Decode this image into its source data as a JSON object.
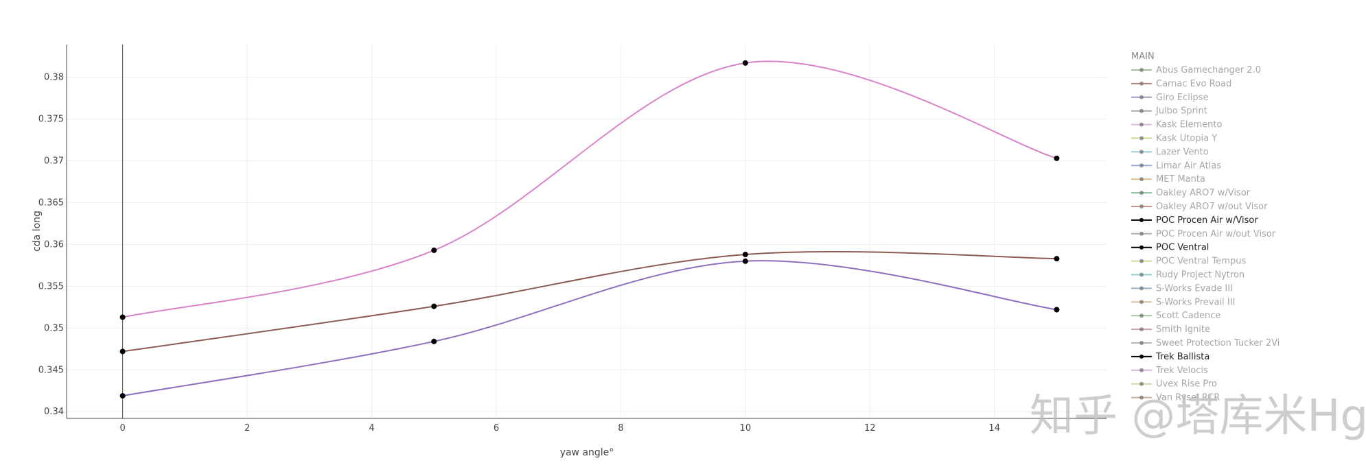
{
  "chart_data": {
    "type": "line",
    "xlabel": "yaw angle°",
    "ylabel": "cda long",
    "xlim": [
      -0.9,
      15.8
    ],
    "ylim": [
      0.3392,
      0.3839
    ],
    "x_ticks": [
      0,
      2,
      4,
      6,
      8,
      10,
      12,
      14
    ],
    "y_ticks": [
      0.34,
      0.345,
      0.35,
      0.355,
      0.36,
      0.365,
      0.37,
      0.375,
      0.38
    ],
    "grid": true,
    "smoothing": "spline",
    "legend": {
      "title": "MAIN",
      "placement": "right",
      "items": [
        {
          "label": "Abus Gamechanger 2.0",
          "color": "#8fbf8f",
          "active": false
        },
        {
          "label": "Carnac Evo Road",
          "color": "#a8786b",
          "active": false
        },
        {
          "label": "Giro Eclipse",
          "color": "#9c8fc0",
          "active": false
        },
        {
          "label": "Julbo Sprint",
          "color": "#a0a0a0",
          "active": false
        },
        {
          "label": "Kask Elemento",
          "color": "#e0b0d4",
          "active": false
        },
        {
          "label": "Kask Utopia Y",
          "color": "#cfd08a",
          "active": false
        },
        {
          "label": "Lazer Vento",
          "color": "#8cc8d8",
          "active": false
        },
        {
          "label": "Limar Air Atlas",
          "color": "#8aa6cc",
          "active": false
        },
        {
          "label": "MET Manta",
          "color": "#d4b878",
          "active": false
        },
        {
          "label": "Oakley ARO7 w/Visor",
          "color": "#82b898",
          "active": false
        },
        {
          "label": "Oakley ARO7 w/out Visor",
          "color": "#c88888",
          "active": false
        },
        {
          "label": "POC Procen Air w/Visor",
          "color": "#8e6fbf",
          "active": true
        },
        {
          "label": "POC Procen Air w/out Visor",
          "color": "#a8a8a8",
          "active": false
        },
        {
          "label": "POC Ventral",
          "color": "#d882c8",
          "active": true
        },
        {
          "label": "POC Ventral Tempus",
          "color": "#c8d890",
          "active": false
        },
        {
          "label": "Rudy Project Nytron",
          "color": "#88c8c8",
          "active": false
        },
        {
          "label": "S-Works Evade III",
          "color": "#90a8c8",
          "active": false
        },
        {
          "label": "S-Works Prevail III",
          "color": "#d8b890",
          "active": false
        },
        {
          "label": "Scott Cadence",
          "color": "#98c098",
          "active": false
        },
        {
          "label": "Smith Ignite",
          "color": "#c89898",
          "active": false
        },
        {
          "label": "Sweet Protection Tucker 2Vi",
          "color": "#b0b0b0",
          "active": false
        },
        {
          "label": "Trek Ballista",
          "color": "#8c5a50",
          "active": true
        },
        {
          "label": "Trek Velocis",
          "color": "#d8a8d0",
          "active": false
        },
        {
          "label": "Uvex Rise Pro",
          "color": "#d0d098",
          "active": false
        },
        {
          "label": "Van Rysel RCR",
          "color": "#c0a888",
          "active": false
        }
      ]
    },
    "series": [
      {
        "name": "POC Ventral",
        "color": "#d882c8",
        "x": [
          0,
          5,
          10,
          15
        ],
        "y": [
          0.3513,
          0.3593,
          0.3817,
          0.3703
        ]
      },
      {
        "name": "Trek Ballista",
        "color": "#8c5a50",
        "x": [
          0,
          5,
          10,
          15
        ],
        "y": [
          0.3472,
          0.3526,
          0.3588,
          0.3583
        ]
      },
      {
        "name": "POC Procen Air w/Visor",
        "color": "#8e6fbf",
        "x": [
          0,
          5,
          10,
          15
        ],
        "y": [
          0.3419,
          0.3484,
          0.358,
          0.3522
        ]
      }
    ]
  },
  "watermark": "知乎 @塔库米Hg"
}
